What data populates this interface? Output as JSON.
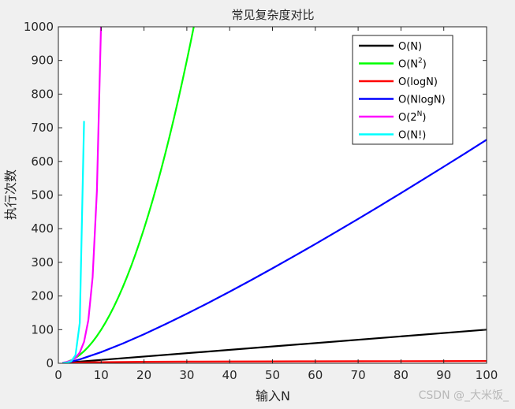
{
  "chart_data": {
    "type": "line",
    "title": "常见复杂度对比",
    "xlabel": "输入N",
    "ylabel": "执行次数",
    "xlim": [
      0,
      100
    ],
    "ylim": [
      0,
      1000
    ],
    "xticks": [
      0,
      10,
      20,
      30,
      40,
      50,
      60,
      70,
      80,
      90,
      100
    ],
    "yticks": [
      0,
      100,
      200,
      300,
      400,
      500,
      600,
      700,
      800,
      900,
      1000
    ],
    "grid": false,
    "legend_position": "top-right",
    "series": [
      {
        "name": "O(N)",
        "legend_base": "O(N)",
        "legend_sup": "",
        "legend_tail": "",
        "color": "#000000",
        "x": [
          1,
          100
        ],
        "y": [
          1,
          100
        ]
      },
      {
        "name": "O(N^2)",
        "legend_base": "O(N",
        "legend_sup": "2",
        "legend_tail": ")",
        "color": "#00ff00",
        "x": [
          1,
          2,
          3,
          4,
          5,
          6,
          7,
          8,
          9,
          10,
          11,
          12,
          13,
          14,
          15,
          16,
          17,
          18,
          19,
          20,
          21,
          22,
          23,
          24,
          25,
          26,
          27,
          28,
          29,
          30,
          31,
          32
        ],
        "y": [
          1,
          4,
          9,
          16,
          25,
          36,
          49,
          64,
          81,
          100,
          121,
          144,
          169,
          196,
          225,
          256,
          289,
          324,
          361,
          400,
          441,
          484,
          529,
          576,
          625,
          676,
          729,
          784,
          841,
          900,
          961,
          1024
        ]
      },
      {
        "name": "O(logN)",
        "legend_base": "O(logN)",
        "legend_sup": "",
        "legend_tail": "",
        "color": "#ff0000",
        "x": [
          1,
          2,
          5,
          10,
          20,
          30,
          40,
          50,
          60,
          70,
          80,
          90,
          100
        ],
        "y": [
          0,
          1,
          2.32,
          3.32,
          4.32,
          4.91,
          5.32,
          5.64,
          5.91,
          6.13,
          6.32,
          6.49,
          6.64
        ]
      },
      {
        "name": "O(NlogN)",
        "legend_base": "O(NlogN)",
        "legend_sup": "",
        "legend_tail": "",
        "color": "#0000ff",
        "x": [
          1,
          2,
          5,
          10,
          15,
          20,
          25,
          30,
          35,
          40,
          45,
          50,
          55,
          60,
          65,
          70,
          75,
          80,
          85,
          90,
          95,
          100
        ],
        "y": [
          0,
          2,
          11.6,
          33.2,
          58.6,
          86.4,
          116.1,
          147.2,
          179.5,
          212.9,
          247.1,
          282.2,
          318.0,
          354.4,
          391.5,
          429.1,
          467.2,
          505.8,
          544.8,
          584.3,
          624.1,
          664.4
        ]
      },
      {
        "name": "O(2^N)",
        "legend_base": "O(2",
        "legend_sup": "N",
        "legend_tail": ")",
        "color": "#ff00ff",
        "x": [
          1,
          2,
          3,
          4,
          5,
          6,
          7,
          8,
          9,
          10
        ],
        "y": [
          2,
          4,
          8,
          16,
          32,
          64,
          128,
          256,
          512,
          1024
        ]
      },
      {
        "name": "O(N!)",
        "legend_base": "O(N!)",
        "legend_sup": "",
        "legend_tail": "",
        "color": "#00ffff",
        "x": [
          1,
          2,
          3,
          4,
          5,
          6
        ],
        "y": [
          1,
          2,
          6,
          24,
          120,
          720
        ]
      }
    ]
  },
  "watermark": "CSDN @_大米饭_"
}
